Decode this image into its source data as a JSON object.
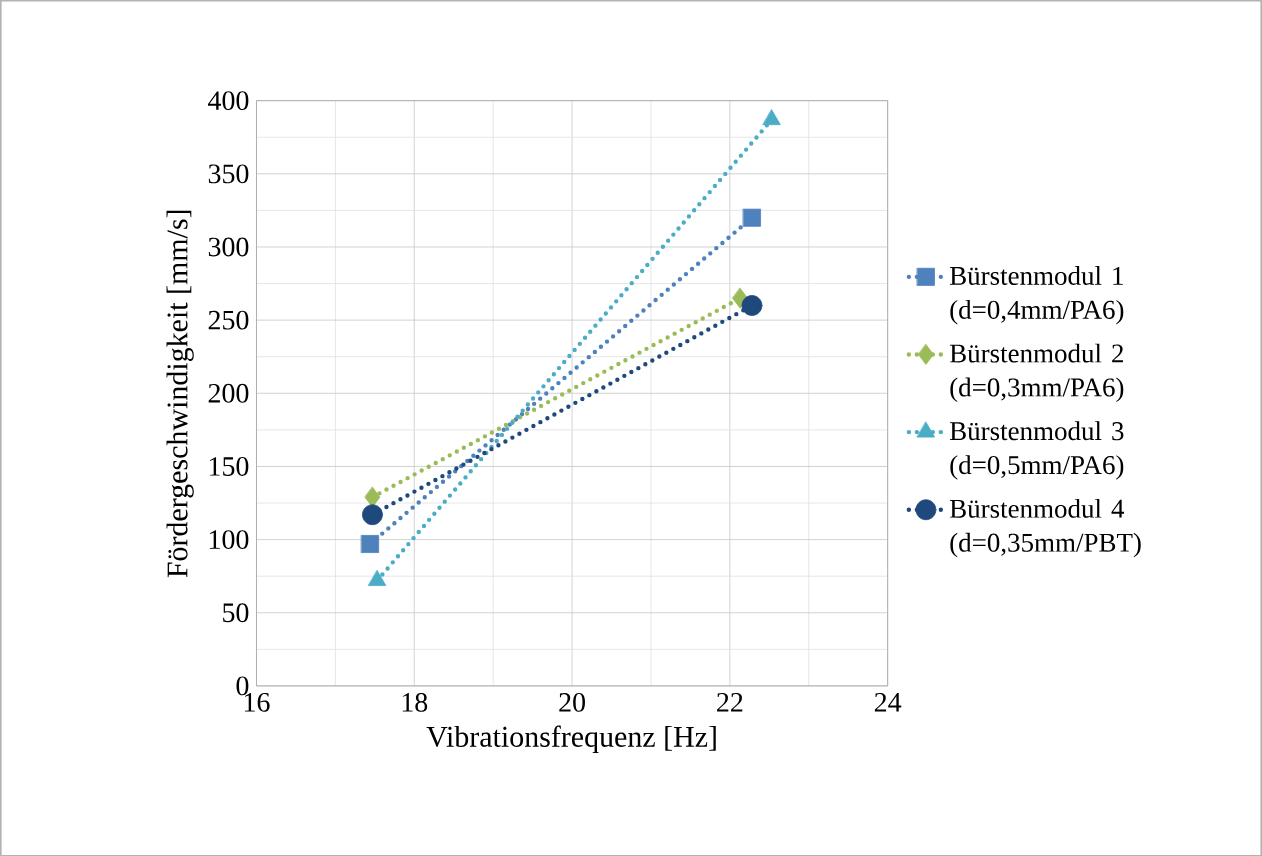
{
  "chart_data": {
    "type": "line",
    "xlabel": "Vibrationsfrequenz [Hz]",
    "ylabel": "Fördergeschwindigkeit [mm/s]",
    "xlim": [
      16,
      24
    ],
    "xticks": [
      16,
      18,
      20,
      22,
      24
    ],
    "ylim": [
      0,
      400
    ],
    "yticks": [
      0,
      50,
      100,
      150,
      200,
      250,
      300,
      350,
      400
    ],
    "grid": true,
    "legend": "right",
    "line_style": "dotted",
    "series": [
      {
        "name": "Bürstenmodul 1 (d=0,4mm/PA6)",
        "color": "#4f81bd",
        "marker": "square",
        "x": [
          17.44,
          22.28
        ],
        "values": [
          97,
          320
        ]
      },
      {
        "name": "Bürstenmodul 2 (d=0,3mm/PA6)",
        "color": "#9bbb59",
        "marker": "diamond",
        "x": [
          17.47,
          22.13
        ],
        "values": [
          129,
          265
        ]
      },
      {
        "name": "Bürstenmodul 3 (d=0,5mm/PA6)",
        "color": "#4bacc6",
        "marker": "triangle",
        "x": [
          17.53,
          22.53
        ],
        "values": [
          72,
          387
        ]
      },
      {
        "name": "Bürstenmodul 4 (d=0,35mm/PBT)",
        "color": "#1f497d",
        "marker": "circle",
        "x": [
          17.47,
          22.28
        ],
        "values": [
          117,
          260
        ]
      }
    ]
  }
}
